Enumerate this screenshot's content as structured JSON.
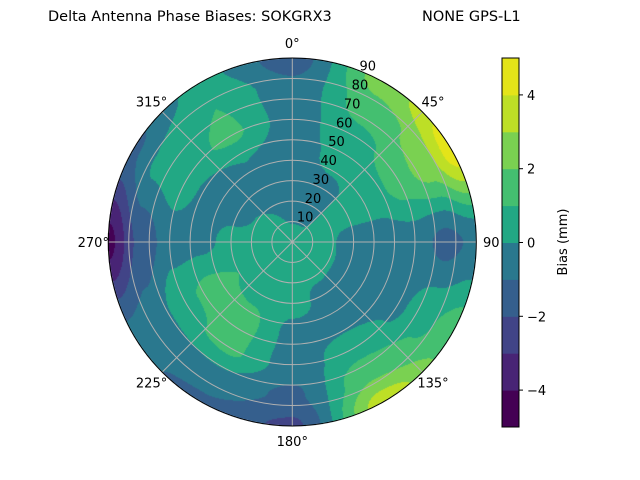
{
  "chart_data": {
    "type": "heatmap",
    "subtype": "polar-filled-contour",
    "title": "Delta Antenna Phase Biases: SOKGRX3",
    "title_right": "NONE GPS-L1",
    "azimuth_ticks": [
      "0°",
      "45°",
      "90",
      "135°",
      "180°",
      "225°",
      "270°",
      "315°"
    ],
    "radial_ticks": [
      "10",
      "20",
      "30",
      "40",
      "50",
      "60",
      "70",
      "80",
      "90"
    ],
    "radial_range": [
      0,
      90
    ],
    "azimuth_direction": "clockwise",
    "zero_location": "top",
    "grid": true,
    "colorbar": {
      "label": "Bias (mm)",
      "ticks": [
        "−4",
        "−2",
        "0",
        "2",
        "4"
      ],
      "range": [
        -5,
        5
      ],
      "levels": [
        -5,
        -4,
        -3,
        -2,
        -1,
        0,
        1,
        2,
        3,
        4,
        5
      ],
      "colors": [
        "#440154",
        "#482475",
        "#414487",
        "#355f8d",
        "#2a788e",
        "#21918c",
        "#22a884",
        "#44bf70",
        "#7ad151",
        "#bddf26",
        "#e4e419"
      ],
      "colormap": "viridis"
    },
    "grid_azimuths": [
      0,
      30,
      60,
      90,
      120,
      150,
      180,
      210,
      240,
      270,
      300,
      330
    ],
    "grid_radii": [
      0,
      15,
      30,
      45,
      60,
      75,
      90
    ],
    "values": [
      [
        0.5,
        -0.3,
        -0.5,
        -0.5,
        -0.5,
        -0.7,
        -1.5
      ],
      [
        0.5,
        -0.3,
        -0.3,
        0.3,
        0.7,
        1.5,
        2.5
      ],
      [
        0.5,
        0.2,
        0.3,
        0.5,
        1.5,
        2.5,
        4.5
      ],
      [
        0.5,
        0.2,
        -0.3,
        -0.5,
        -0.5,
        -1.3,
        -0.8
      ],
      [
        0.5,
        0.3,
        -0.3,
        -0.5,
        -0.2,
        0.8,
        1.5
      ],
      [
        0.5,
        0.3,
        -0.2,
        -0.3,
        0.5,
        1.8,
        3.5
      ],
      [
        0.5,
        0.3,
        0.3,
        -0.3,
        -0.5,
        -1.2,
        -2.2
      ],
      [
        0.5,
        0.5,
        0.8,
        1.3,
        1.2,
        -0.3,
        -1.2
      ],
      [
        0.5,
        0.5,
        1.0,
        1.3,
        0.8,
        -0.5,
        -0.8
      ],
      [
        0.5,
        0.3,
        0.3,
        -0.3,
        -0.5,
        -1.8,
        -4.3
      ],
      [
        0.5,
        0.2,
        -0.3,
        -0.5,
        0.5,
        0.2,
        -1.2
      ],
      [
        0.5,
        0.0,
        -0.5,
        0.0,
        1.2,
        1.0,
        0.3
      ]
    ]
  }
}
